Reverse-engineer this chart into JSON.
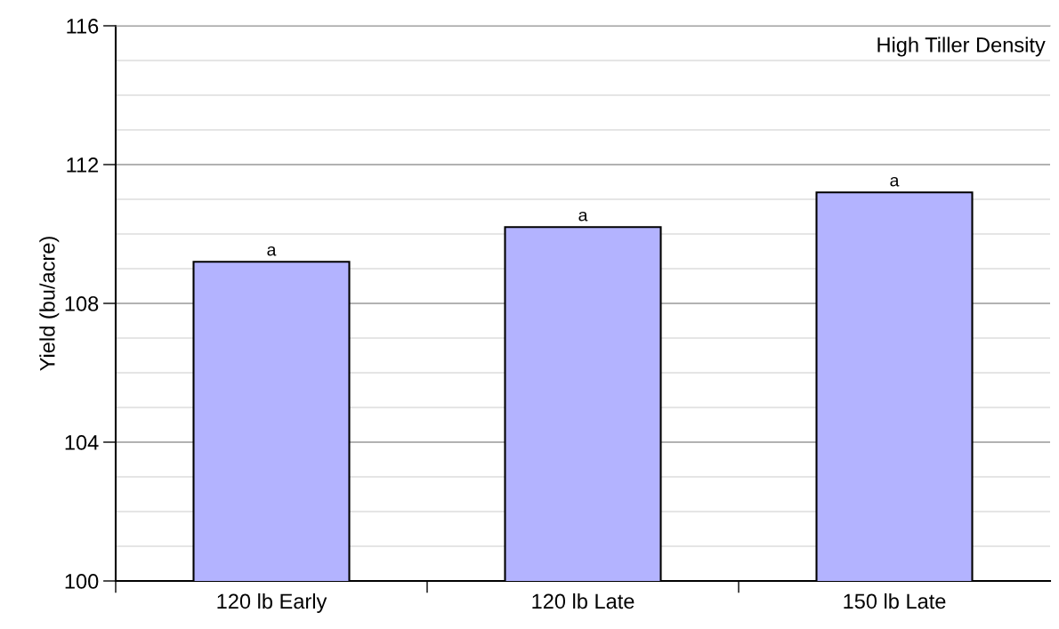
{
  "chart_data": {
    "type": "bar",
    "ylabel": "Yield (bu/acre)",
    "categories": [
      "120 lb Early",
      "120 lb Late",
      "150 lb Late"
    ],
    "values": [
      109.2,
      110.2,
      111.2
    ],
    "color": "#b3b3ff",
    "value_labels": [
      "a",
      "a",
      "a"
    ],
    "ylim": [
      100,
      116
    ],
    "yticks": [
      100,
      104,
      108,
      112,
      116
    ],
    "grid": "y",
    "annotations": [
      "High Tiller Density"
    ]
  }
}
